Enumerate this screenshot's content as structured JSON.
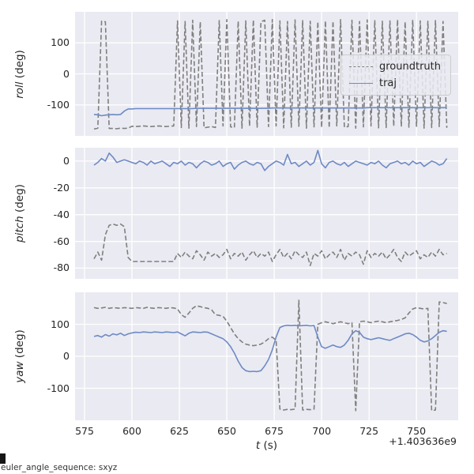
{
  "figure": {
    "footer_note": "euler_angle_sequence: sxyz",
    "xlabel_var": "t",
    "xlabel_unit": "(s)",
    "x_offset_text": "+1.403636e9",
    "colors": {
      "groundtruth": "#7f7f7f",
      "traj": "#6d8ac4",
      "axes_bg": "#eaeaf2",
      "grid": "#ffffff",
      "text": "#262626"
    },
    "legend": {
      "entries": [
        {
          "label": "groundtruth",
          "style": "dashed"
        },
        {
          "label": "traj",
          "style": "solid"
        }
      ]
    }
  },
  "chart_data": {
    "type": "line",
    "xlim": [
      570,
      772
    ],
    "xticks": [
      575,
      600,
      625,
      650,
      675,
      700,
      725,
      750
    ],
    "x": [
      580,
      582,
      584,
      586,
      588,
      590,
      592,
      594,
      596,
      598,
      600,
      602,
      604,
      606,
      608,
      610,
      612,
      614,
      616,
      618,
      620,
      622,
      624,
      626,
      628,
      630,
      632,
      634,
      636,
      638,
      640,
      642,
      644,
      646,
      648,
      650,
      652,
      654,
      656,
      658,
      660,
      662,
      664,
      666,
      668,
      670,
      672,
      674,
      676,
      678,
      680,
      682,
      684,
      686,
      688,
      690,
      692,
      694,
      696,
      698,
      700,
      702,
      704,
      706,
      708,
      710,
      712,
      714,
      716,
      718,
      720,
      722,
      724,
      726,
      728,
      730,
      732,
      734,
      736,
      738,
      740,
      742,
      744,
      746,
      748,
      750,
      752,
      754,
      756,
      758,
      760,
      762,
      764,
      766
    ],
    "subplots": [
      {
        "ylabel_var": "roll",
        "ylabel_unit": "(deg)",
        "ylim": [
          -200,
          200
        ],
        "yticks": [
          100,
          0,
          -100
        ],
        "series": [
          {
            "name": "groundtruth",
            "style": "dashed",
            "values": [
              -178,
              -175,
              170,
              168,
              -176,
              -176,
              -177,
              -175,
              -176,
              -175,
              -169,
              -170,
              -169,
              -168,
              -169,
              -170,
              -169,
              -168,
              -169,
              -170,
              -169,
              -168,
              171,
              -173,
              169,
              -175,
              173,
              -170,
              168,
              -174,
              -172,
              -170,
              -173,
              172,
              -168,
              175,
              -171,
              -173,
              170,
              -175,
              171,
              -169,
              174,
              -172,
              168,
              173,
              -170,
              175,
              -168,
              171,
              -174,
              169,
              -172,
              174,
              -169,
              172,
              -175,
              170,
              -171,
              168,
              -173,
              171,
              -174,
              170,
              -168,
              175,
              -172,
              -170,
              173,
              -175,
              169,
              -171,
              174,
              -168,
              172,
              -174,
              170,
              -173,
              171,
              -169,
              175,
              -170,
              168,
              -172,
              174,
              -169,
              171,
              -175,
              170,
              -173,
              172,
              -170,
              169,
              -174
            ]
          },
          {
            "name": "traj",
            "style": "solid",
            "values": [
              -131,
              -132,
              -135,
              -133,
              -132,
              -131,
              -132,
              -131,
              -120,
              -113,
              -113,
              -112,
              -112,
              -112,
              -112,
              -112,
              -112,
              -112,
              -112,
              -112,
              -112,
              -112,
              -112,
              -112,
              -112,
              -112,
              -112,
              -111,
              -111,
              -111,
              -111,
              -111,
              -111,
              -111,
              -111,
              -111,
              -111,
              -111,
              -111,
              -111,
              -111,
              -111,
              -111,
              -111,
              -111,
              -111,
              -111,
              -110,
              -110,
              -110,
              -110,
              -110,
              -110,
              -110,
              -110,
              -110,
              -110,
              -110,
              -110,
              -110,
              -110,
              -110,
              -110,
              -110,
              -110,
              -110,
              -110,
              -110,
              -110,
              -110,
              -110,
              -110,
              -109,
              -109,
              -109,
              -109,
              -109,
              -109,
              -109,
              -109,
              -109,
              -109,
              -109,
              -109,
              -109,
              -109,
              -109,
              -109,
              -109,
              -109,
              -109,
              -109,
              -109,
              -109
            ]
          }
        ]
      },
      {
        "ylabel_var": "pitch",
        "ylabel_unit": "(deg)",
        "ylim": [
          -88,
          10
        ],
        "yticks": [
          0,
          -20,
          -40,
          -60,
          -80
        ],
        "series": [
          {
            "name": "groundtruth",
            "style": "dashed",
            "values": [
              -73,
              -68,
              -74,
              -55,
              -48,
              -47,
              -48,
              -47,
              -49,
              -72,
              -75,
              -75,
              -75,
              -75,
              -75,
              -75,
              -75,
              -75,
              -75,
              -75,
              -75,
              -75,
              -69,
              -72,
              -68,
              -71,
              -73,
              -67,
              -70,
              -74,
              -68,
              -71,
              -69,
              -72,
              -70,
              -66,
              -73,
              -69,
              -71,
              -68,
              -74,
              -70,
              -67,
              -72,
              -69,
              -71,
              -68,
              -75,
              -70,
              -66,
              -72,
              -69,
              -73,
              -67,
              -70,
              -72,
              -68,
              -78,
              -69,
              -71,
              -67,
              -73,
              -70,
              -68,
              -72,
              -66,
              -74,
              -69,
              -71,
              -68,
              -70,
              -77,
              -67,
              -72,
              -69,
              -71,
              -68,
              -73,
              -70,
              -66,
              -72,
              -75,
              -68,
              -71,
              -69,
              -67,
              -73,
              -70,
              -72,
              -68,
              -71,
              -66,
              -70,
              -69
            ]
          },
          {
            "name": "traj",
            "style": "solid",
            "values": [
              -3,
              -1,
              2,
              0,
              6,
              3,
              -1,
              0,
              1,
              0,
              -1,
              -2,
              0,
              -1,
              -3,
              0,
              -2,
              -1,
              0,
              -2,
              -4,
              -1,
              -2,
              0,
              -3,
              -1,
              -2,
              -5,
              -2,
              0,
              -1,
              -3,
              -2,
              0,
              -4,
              -2,
              -1,
              -6,
              -3,
              -1,
              0,
              -2,
              -3,
              -1,
              -2,
              -7,
              -4,
              -2,
              0,
              -1,
              -3,
              5,
              -2,
              -1,
              -4,
              -2,
              0,
              -3,
              -1,
              8,
              -2,
              -5,
              -1,
              0,
              -2,
              -3,
              -1,
              -4,
              -2,
              0,
              -1,
              -2,
              -3,
              -1,
              -2,
              0,
              -3,
              -5,
              -2,
              -1,
              0,
              -2,
              -1,
              -3,
              0,
              -2,
              -1,
              -4,
              -2,
              0,
              -1,
              -3,
              -2,
              2
            ]
          }
        ]
      },
      {
        "ylabel_var": "yaw",
        "ylabel_unit": "(deg)",
        "ylim": [
          -200,
          200
        ],
        "yticks": [
          100,
          0,
          -100
        ],
        "series": [
          {
            "name": "groundtruth",
            "style": "dashed",
            "values": [
              152,
              150,
              151,
              153,
              150,
              152,
              151,
              150,
              152,
              151,
              150,
              152,
              151,
              150,
              153,
              151,
              150,
              152,
              151,
              150,
              152,
              151,
              148,
              130,
              122,
              135,
              150,
              158,
              155,
              152,
              150,
              145,
              130,
              128,
              125,
              110,
              90,
              70,
              55,
              45,
              38,
              35,
              33,
              35,
              38,
              45,
              55,
              60,
              50,
              -165,
              -168,
              -166,
              -167,
              -165,
              175,
              -168,
              -166,
              -167,
              -165,
              100,
              105,
              108,
              105,
              102,
              105,
              108,
              105,
              102,
              105,
              -170,
              108,
              110,
              108,
              105,
              108,
              110,
              108,
              105,
              108,
              110,
              112,
              115,
              120,
              135,
              148,
              152,
              150,
              148,
              150,
              -170,
              -168,
              170,
              168,
              165
            ]
          },
          {
            "name": "traj",
            "style": "solid",
            "values": [
              62,
              65,
              60,
              68,
              63,
              70,
              67,
              72,
              65,
              70,
              73,
              75,
              74,
              76,
              75,
              74,
              76,
              75,
              74,
              76,
              75,
              74,
              76,
              70,
              64,
              72,
              76,
              75,
              74,
              76,
              75,
              70,
              65,
              60,
              55,
              45,
              30,
              10,
              -15,
              -35,
              -45,
              -48,
              -47,
              -48,
              -45,
              -30,
              -10,
              20,
              60,
              90,
              95,
              97,
              96,
              97,
              95,
              96,
              97,
              95,
              96,
              60,
              30,
              25,
              30,
              35,
              30,
              28,
              35,
              50,
              70,
              80,
              75,
              60,
              55,
              52,
              55,
              58,
              55,
              52,
              50,
              55,
              60,
              65,
              70,
              72,
              68,
              60,
              50,
              45,
              48,
              55,
              65,
              75,
              80,
              78
            ]
          }
        ]
      }
    ]
  }
}
